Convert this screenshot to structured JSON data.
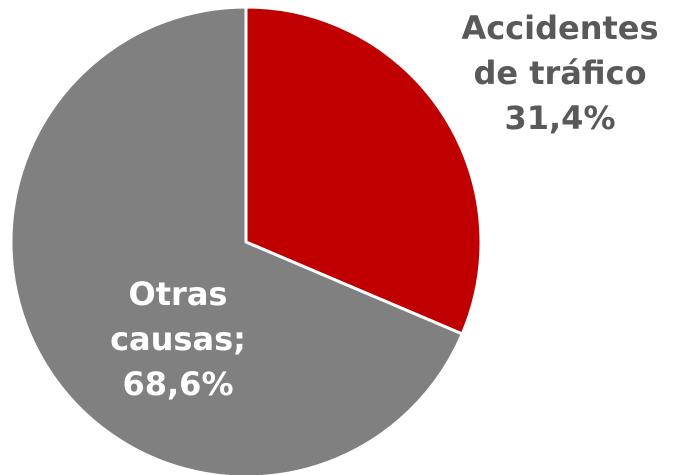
{
  "chart_data": {
    "type": "pie",
    "categories": [
      "Accidentes de tráfico",
      "Otras causas;"
    ],
    "values": [
      31.4,
      68.6
    ],
    "value_labels": [
      "31,4%",
      "68,6%"
    ],
    "colors": [
      "#c00000",
      "#808080"
    ]
  }
}
